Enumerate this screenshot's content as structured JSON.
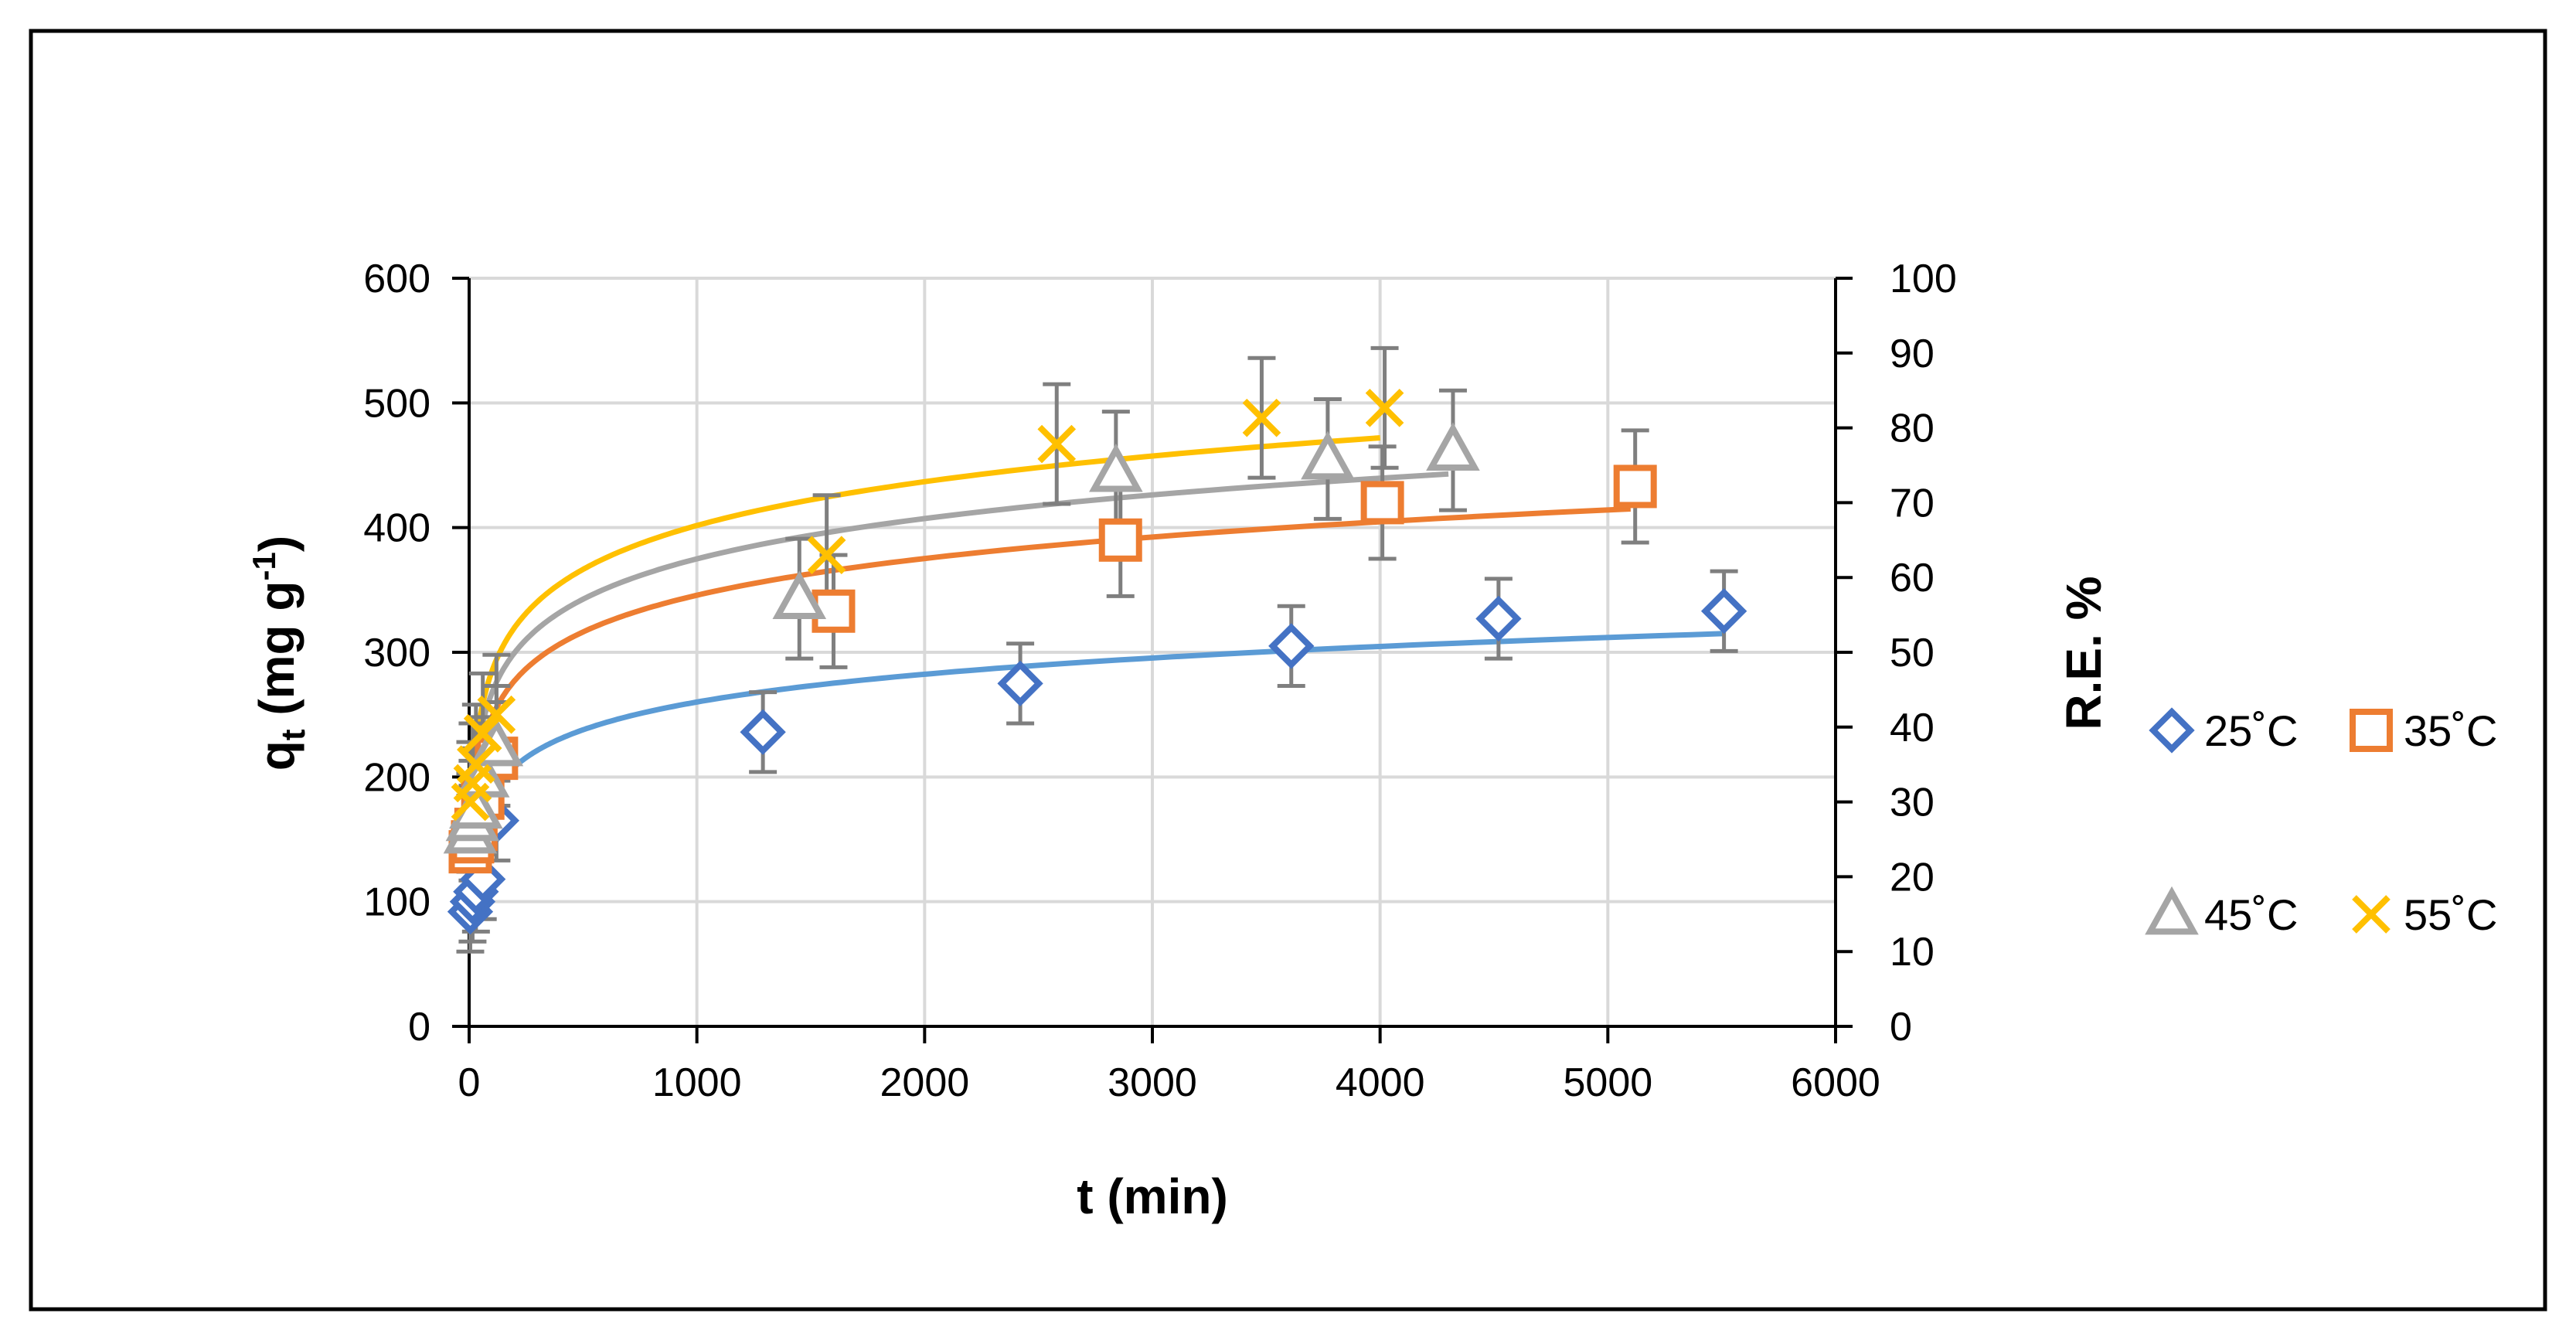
{
  "chart_data": {
    "type": "scatter",
    "xlabel": "t (min)",
    "ylabel": "q",
    "ylabel_sub": "t",
    "ylabel_unit_open": " (mg g",
    "ylabel_unit_sup": "-1",
    "ylabel_unit_close": ")",
    "y2label": "R.E. %",
    "xlim": [
      0,
      6000
    ],
    "ylim": [
      0,
      600
    ],
    "y2lim": [
      0,
      100
    ],
    "xticks": [
      "0",
      "1000",
      "2000",
      "3000",
      "4000",
      "5000",
      "6000"
    ],
    "yticks": [
      "0",
      "100",
      "200",
      "300",
      "400",
      "500",
      "600"
    ],
    "y2ticks": [
      "0",
      "10",
      "20",
      "30",
      "40",
      "50",
      "60",
      "70",
      "80",
      "90",
      "100"
    ],
    "grid": true,
    "legend_position": "right",
    "series": [
      {
        "name": "25˚C",
        "color": "#4472C4",
        "fit_color": "#5B9BD5",
        "marker": "diamond",
        "x": [
          5,
          15,
          30,
          60,
          120,
          1290,
          2420,
          3610,
          4520,
          5510
        ],
        "y": [
          92,
          100,
          108,
          118,
          165,
          236,
          275,
          305,
          327,
          333
        ],
        "err": [
          32,
          32,
          32,
          32,
          32,
          32,
          32,
          32,
          32,
          32
        ],
        "fit_x": [
          10,
          5510
        ],
        "fit_y": [
          112,
          315
        ]
      },
      {
        "name": "35˚C",
        "color": "#ED7D31",
        "fit_color": "#ED7D31",
        "marker": "square",
        "x": [
          5,
          15,
          30,
          60,
          120,
          1600,
          2860,
          4010,
          5120
        ],
        "y": [
          140,
          148,
          158,
          183,
          215,
          333,
          390,
          420,
          433
        ],
        "err": [
          45,
          45,
          45,
          45,
          45,
          45,
          45,
          45,
          45
        ],
        "fit_x": [
          10,
          5100
        ],
        "fit_y": [
          150,
          415
        ]
      },
      {
        "name": "45˚C",
        "color": "#A5A5A5",
        "fit_color": "#A5A5A5",
        "marker": "triangle",
        "x": [
          5,
          15,
          30,
          60,
          120,
          1450,
          2840,
          3770,
          4320
        ],
        "y": [
          155,
          165,
          175,
          200,
          225,
          343,
          445,
          455,
          462
        ],
        "err": [
          48,
          48,
          48,
          48,
          48,
          48,
          48,
          48,
          48
        ],
        "fit_x": [
          10,
          4300
        ],
        "fit_y": [
          160,
          443
        ]
      },
      {
        "name": "55˚C",
        "color": "#FFC000",
        "fit_color": "#FFC000",
        "marker": "x",
        "x": [
          5,
          15,
          30,
          60,
          120,
          1570,
          2580,
          3480,
          4020
        ],
        "y": [
          180,
          195,
          210,
          235,
          250,
          378,
          467,
          488,
          496
        ],
        "err": [
          48,
          48,
          48,
          48,
          48,
          48,
          48,
          48,
          48
        ],
        "fit_x": [
          10,
          4000
        ],
        "fit_y": [
          168,
          472
        ]
      }
    ],
    "error_bar_color": "#7F7F7F"
  }
}
